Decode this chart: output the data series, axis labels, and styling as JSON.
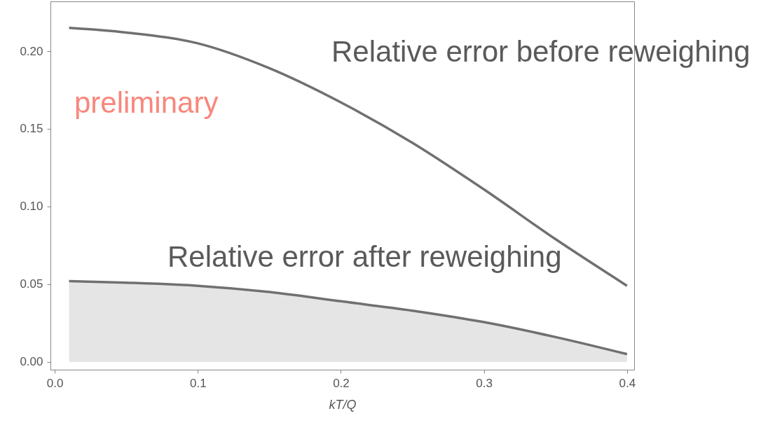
{
  "chart_data": {
    "type": "line",
    "xlabel": "kT/Q",
    "x": [
      0.01,
      0.05,
      0.1,
      0.15,
      0.2,
      0.25,
      0.3,
      0.35,
      0.4
    ],
    "series": [
      {
        "color": "#707070",
        "values": [
          0.215,
          0.212,
          0.205,
          0.189,
          0.167,
          0.141,
          0.111,
          0.079,
          0.049
        ]
      },
      {
        "type": "area",
        "color": "#707070",
        "values": [
          0.052,
          0.051,
          0.049,
          0.045,
          0.039,
          0.033,
          0.0256,
          0.016,
          0.005
        ]
      }
    ],
    "xlim": [
      -0.003,
      0.405
    ],
    "ylim": [
      -0.005,
      0.232
    ],
    "xticks": [
      {
        "value": 0,
        "label": "0.0"
      },
      0.1,
      0.2,
      0.3,
      0.4
    ],
    "yticks": [
      {
        "value": 0,
        "label": "0.00"
      },
      0.05,
      {
        "value": 0.1,
        "label": "0.10"
      },
      0.15,
      {
        "value": 0.2,
        "label": "0.20"
      }
    ],
    "grid": false,
    "annotations": [
      "Relative error before reweighing",
      "Relative error after reweighing",
      "preliminary"
    ]
  }
}
